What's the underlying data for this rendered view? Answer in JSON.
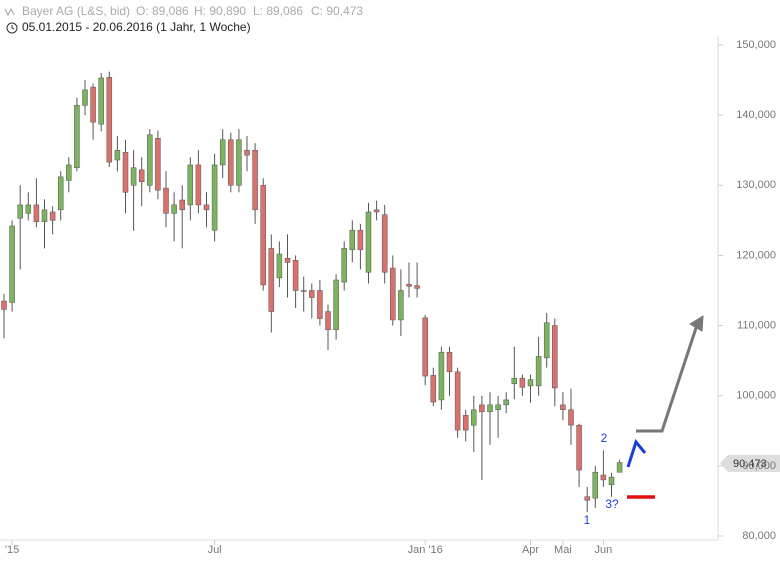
{
  "chart_data": {
    "type": "candlestick",
    "instrument": "Bayer AG (L&S, bid)",
    "ohlc_header": [
      "O: 89,086",
      "H: 90,890",
      "L: 89,086",
      "C: 90,473"
    ],
    "date_range": "05.01.2015 - 20.06.2016 (1 Jahr, 1 Woche)",
    "price_label": "90,473",
    "annotations": [
      "1",
      "2",
      "3?"
    ],
    "up_color": "#7cb35f",
    "down_color": "#d9716c",
    "flat_color": "#999999",
    "categories": [
      null,
      "'15",
      null,
      null,
      null,
      null,
      null,
      null,
      null,
      null,
      null,
      null,
      null,
      null,
      null,
      null,
      null,
      null,
      null,
      null,
      null,
      null,
      null,
      null,
      null,
      null,
      "Jul",
      null,
      null,
      null,
      null,
      null,
      null,
      null,
      null,
      null,
      null,
      null,
      null,
      null,
      null,
      null,
      null,
      null,
      null,
      null,
      null,
      null,
      null,
      null,
      null,
      null,
      "Jan '16",
      null,
      null,
      null,
      null,
      null,
      null,
      null,
      null,
      null,
      null,
      null,
      null,
      "Apr",
      null,
      null,
      null,
      "Mai",
      null,
      null,
      null,
      null,
      "Jun",
      null,
      null
    ],
    "open": [
      113500,
      113300,
      125300,
      126000,
      127200,
      124800,
      126200,
      126500,
      130700,
      132500,
      141400,
      144000,
      138700,
      145400,
      133600,
      134700,
      130000,
      132200,
      130000,
      136700,
      129600,
      126000,
      127900,
      127200,
      132900,
      127200,
      123600,
      132900,
      136500,
      130000,
      135000,
      135000,
      130000,
      121000,
      116800,
      119600,
      119300,
      115000,
      115000,
      115000,
      112000,
      109400,
      116200,
      120800,
      123600,
      117600,
      126500,
      125800,
      118200,
      110800,
      115900,
      115700,
      111100,
      102900,
      99400,
      106200,
      103400,
      97200,
      95800,
      98700,
      97700,
      98000,
      98700,
      101700,
      102500,
      101400,
      101400,
      105400,
      110000,
      98700,
      98000,
      95800,
      85600,
      85400,
      88700,
      87300,
      89086
    ],
    "high": [
      114500,
      125000,
      130000,
      129000,
      131000,
      128000,
      127000,
      132000,
      134000,
      142500,
      145000,
      144500,
      146000,
      146200,
      137000,
      136500,
      135000,
      134000,
      138000,
      137800,
      132000,
      129000,
      130000,
      134000,
      135000,
      129000,
      134500,
      138000,
      137500,
      138000,
      137000,
      136000,
      131000,
      123000,
      122000,
      123000,
      120000,
      117000,
      116000,
      116500,
      113000,
      117300,
      122000,
      125000,
      124500,
      127500,
      127800,
      127200,
      120000,
      118000,
      119000,
      119000,
      111500,
      104000,
      107000,
      107000,
      104000,
      98000,
      100000,
      100000,
      100500,
      100000,
      100500,
      107000,
      103000,
      103000,
      108400,
      111800,
      111000,
      100500,
      101000,
      96000,
      87000,
      90000,
      92200,
      89000,
      90890
    ],
    "low": [
      108200,
      112000,
      118000,
      125000,
      124000,
      121000,
      123000,
      125000,
      129000,
      132000,
      140000,
      136500,
      137700,
      132600,
      132000,
      126000,
      123500,
      127000,
      129000,
      128000,
      124000,
      122000,
      121000,
      125000,
      126000,
      124000,
      122000,
      131000,
      129000,
      129000,
      132000,
      124500,
      115000,
      109000,
      115500,
      114000,
      112500,
      112000,
      111000,
      110000,
      106500,
      108000,
      115000,
      119000,
      118000,
      116000,
      125000,
      116000,
      110000,
      108500,
      114000,
      114000,
      101500,
      98500,
      98000,
      100000,
      94000,
      93500,
      92000,
      88000,
      93000,
      94000,
      97500,
      99500,
      100000,
      99000,
      100000,
      104000,
      98500,
      96500,
      93000,
      87000,
      83400,
      84000,
      87000,
      85600,
      89086
    ],
    "close": [
      112300,
      124200,
      127200,
      127200,
      124800,
      126500,
      125000,
      131200,
      132900,
      141400,
      143600,
      139000,
      145300,
      133300,
      135000,
      129000,
      132500,
      130500,
      137200,
      129300,
      126000,
      127200,
      126500,
      132900,
      127200,
      126500,
      132900,
      136500,
      130000,
      136500,
      134300,
      126500,
      115800,
      112000,
      120200,
      119000,
      115000,
      115000,
      114000,
      111000,
      109400,
      116500,
      121000,
      123600,
      120800,
      126200,
      126200,
      117600,
      110800,
      115000,
      115600,
      115300,
      102800,
      99100,
      106200,
      103400,
      95100,
      95100,
      98000,
      97700,
      98700,
      98700,
      99400,
      102500,
      101200,
      102300,
      105600,
      110400,
      101100,
      98000,
      95800,
      89400,
      85100,
      89100,
      88000,
      88400,
      90473
    ],
    "ylim": [
      80000,
      150000
    ],
    "yticks": [
      {
        "value": 80000,
        "label": "80,000"
      },
      {
        "value": 90000,
        "label": "90,000"
      },
      {
        "value": 100000,
        "label": "100,000"
      },
      {
        "value": 110000,
        "label": "110,000"
      },
      {
        "value": 120000,
        "label": "120,000"
      },
      {
        "value": 130000,
        "label": "130,000"
      },
      {
        "value": 140000,
        "label": "140,000"
      },
      {
        "value": 150000,
        "label": "150,000"
      }
    ]
  }
}
